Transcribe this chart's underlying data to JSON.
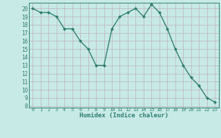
{
  "x": [
    0,
    1,
    2,
    3,
    4,
    5,
    6,
    7,
    8,
    9,
    10,
    11,
    12,
    13,
    14,
    15,
    16,
    17,
    18,
    19,
    20,
    21,
    22,
    23
  ],
  "y": [
    20,
    19.5,
    19.5,
    19,
    17.5,
    17.5,
    16,
    15,
    13,
    13,
    17.5,
    19,
    19.5,
    20,
    19,
    20.5,
    19.5,
    17.5,
    15,
    13,
    11.5,
    10.5,
    9,
    8.5
  ],
  "line_color": "#2d7d6e",
  "marker_color": "#2d7d6e",
  "bg_color": "#c8eae6",
  "grid_color": "#c0b8c0",
  "xlabel": "Humidex (Indice chaleur)",
  "xlim": [
    -0.5,
    23.5
  ],
  "ylim": [
    7.8,
    20.7
  ],
  "yticks": [
    8,
    9,
    10,
    11,
    12,
    13,
    14,
    15,
    16,
    17,
    18,
    19,
    20
  ],
  "xticks": [
    0,
    1,
    2,
    3,
    4,
    5,
    6,
    7,
    8,
    9,
    10,
    11,
    12,
    13,
    14,
    15,
    16,
    17,
    18,
    19,
    20,
    21,
    22,
    23
  ]
}
